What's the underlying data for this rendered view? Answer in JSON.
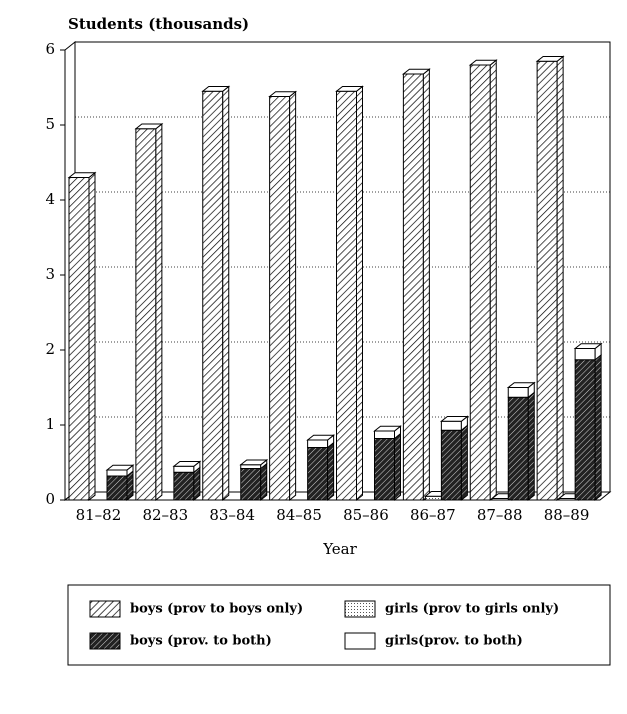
{
  "chart_data": {
    "type": "bar3d",
    "y_label": "Students (thousands)",
    "x_label": "Year",
    "categories": [
      "81–82",
      "82–83",
      "83–84",
      "84–85",
      "85–86",
      "86–87",
      "87–88",
      "88–89"
    ],
    "series": [
      {
        "name": "boys (prov to boys only)",
        "values": [
          4.3,
          4.95,
          5.45,
          5.38,
          5.45,
          5.68,
          5.8,
          5.85
        ]
      },
      {
        "name": "girls (prov to girls only)",
        "values": [
          null,
          null,
          null,
          null,
          null,
          0.05,
          0.02,
          0.02
        ]
      },
      {
        "name": "boys (prov. to both)",
        "values": [
          0.32,
          0.37,
          0.42,
          0.7,
          0.82,
          0.93,
          1.37,
          1.87
        ]
      },
      {
        "name": "girls(prov. to both)",
        "values": [
          0.08,
          0.08,
          0.05,
          0.1,
          0.1,
          0.12,
          0.13,
          0.15
        ]
      }
    ],
    "ylim": [
      0,
      6
    ],
    "yticks": [
      0,
      1,
      2,
      3,
      4,
      5,
      6
    ],
    "grid": true
  }
}
